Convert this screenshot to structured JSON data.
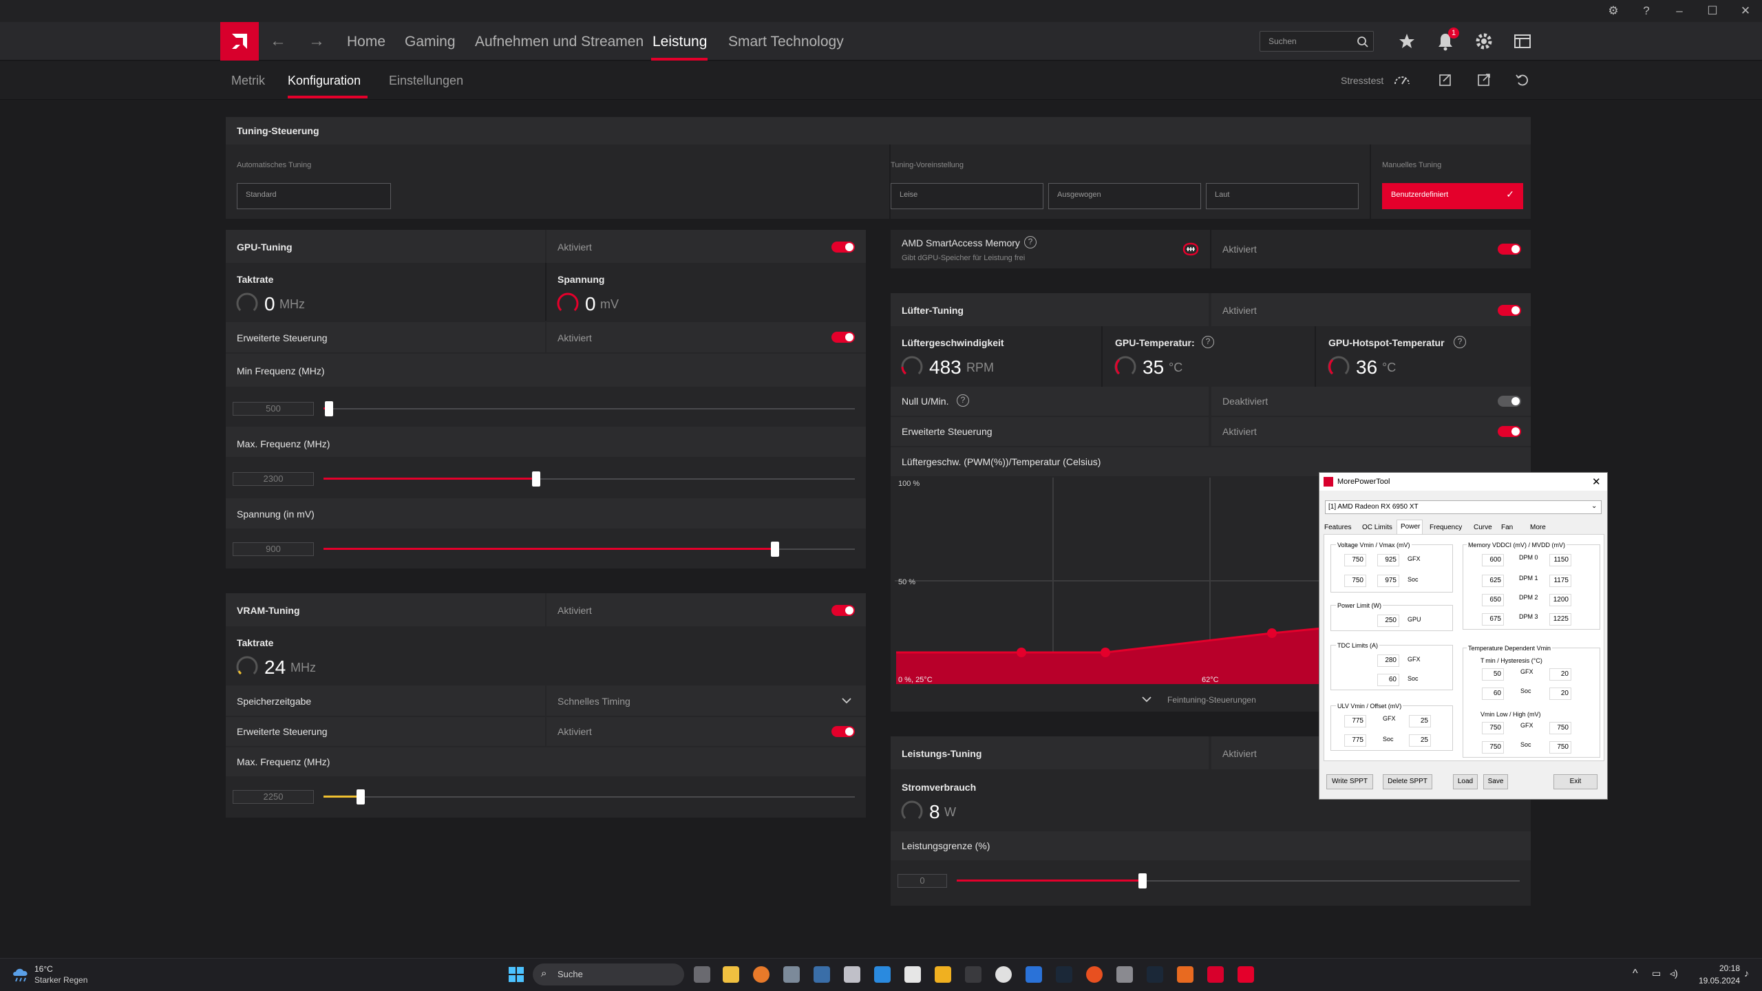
{
  "app": {
    "logo": "amd-logo-icon"
  },
  "nav": {
    "home": "Home",
    "gaming": "Gaming",
    "record": "Aufnehmen und Streamen",
    "performance": "Leistung",
    "smart": "Smart Technology",
    "search_placeholder": "Suchen",
    "notifications": "1"
  },
  "subnav": {
    "metric": "Metrik",
    "config": "Konfiguration",
    "settings": "Einstellungen",
    "stresstest": "Stresstest"
  },
  "tuning_control": {
    "title": "Tuning-Steuerung",
    "auto_label": "Automatisches Tuning",
    "auto_value": "Standard",
    "preset_label": "Tuning-Voreinstellung",
    "presets": [
      "Leise",
      "Ausgewogen",
      "Laut"
    ],
    "manual_label": "Manuelles Tuning",
    "manual_value": "Benutzerdefiniert"
  },
  "gpu": {
    "title": "GPU-Tuning",
    "status": "Aktiviert",
    "clock_label": "Taktrate",
    "clock_value": "0",
    "clock_unit": "MHz",
    "voltage_label": "Spannung",
    "voltage_value": "0",
    "voltage_unit": "mV",
    "advanced_label": "Erweiterte Steuerung",
    "advanced_status": "Aktiviert",
    "min_freq_label": "Min Frequenz (MHz)",
    "min_freq_value": "500",
    "max_freq_label": "Max. Frequenz (MHz)",
    "max_freq_value": "2300",
    "voltage_mv_label": "Spannung (in mV)",
    "voltage_mv_value": "900",
    "min_freq_level": 0.01,
    "max_freq_level": 0.4,
    "voltage_level": 0.85
  },
  "vram": {
    "title": "VRAM-Tuning",
    "status": "Aktiviert",
    "clock_label": "Taktrate",
    "clock_value": "24",
    "clock_unit": "MHz",
    "timing_label": "Speicherzeitgabe",
    "timing_value": "Schnelles Timing",
    "advanced_label": "Erweiterte Steuerung",
    "advanced_status": "Aktiviert",
    "max_freq_label": "Max. Frequenz (MHz)",
    "max_freq_value": "2250",
    "max_freq_level": 0.07
  },
  "sam": {
    "title": "AMD SmartAccess Memory",
    "subtitle": "Gibt dGPU-Speicher für Leistung frei",
    "status": "Aktiviert"
  },
  "fan": {
    "title": "Lüfter-Tuning",
    "status": "Aktiviert",
    "speed_label": "Lüftergeschwindigkeit",
    "speed_value": "483",
    "speed_unit": "RPM",
    "gpu_temp_label": "GPU-Temperatur:",
    "gpu_temp_value": "35",
    "gpu_temp_unit": "°C",
    "hotspot_label": "GPU-Hotspot-Temperatur",
    "hotspot_value": "36",
    "hotspot_unit": "°C",
    "zero_rpm_label": "Null U/Min.",
    "zero_rpm_status": "Deaktiviert",
    "advanced_label": "Erweiterte Steuerung",
    "advanced_status": "Aktiviert",
    "curve_title": "Lüftergeschw. (PWM(%))/Temperatur (Celsius)",
    "y100": "100 %",
    "y50": "50 %",
    "x0": "0 %, 25°C",
    "x62": "62°C",
    "fine_tune": "Feintuning-Steuerungen"
  },
  "power": {
    "title": "Leistungs-Tuning",
    "status": "Aktiviert",
    "consumption_label": "Stromverbrauch",
    "consumption_value": "8",
    "consumption_unit": "W",
    "limit_label": "Leistungsgrenze (%)",
    "limit_value": "0",
    "limit_level": 0.33
  },
  "mpt": {
    "title": "MorePowerTool",
    "device": "[1] AMD Radeon RX 6950 XT",
    "tabs": [
      "Features",
      "OC Limits",
      "Power",
      "Frequency",
      "Curve",
      "Fan",
      "More"
    ],
    "voltage_title": "Voltage Vmin / Vmax (mV)",
    "v_gfx": [
      "750",
      "925"
    ],
    "v_soc": [
      "750",
      "975"
    ],
    "gfx": "GFX",
    "soc": "Soc",
    "gpu": "GPU",
    "power_limit_title": "Power Limit (W)",
    "power_limit": "250",
    "tdc_title": "TDC Limits (A)",
    "tdc_gfx": "280",
    "tdc_soc": "60",
    "ulv_title": "ULV Vmin / Offset (mV)",
    "ulv_gfx": [
      "775",
      "25"
    ],
    "ulv_soc": [
      "775",
      "25"
    ],
    "mem_title": "Memory VDDCI (mV) / MVDD (mV)",
    "dpm": [
      "DPM 0",
      "DPM 1",
      "DPM 2",
      "DPM 3"
    ],
    "vddci": [
      "600",
      "625",
      "650",
      "675"
    ],
    "mvdd": [
      "1150",
      "1175",
      "1200",
      "1225"
    ],
    "tdv_title": "Temperature Dependent Vmin",
    "tmin_title": "T min / Hysteresis (°C)",
    "tmin_gfx": [
      "50",
      "20"
    ],
    "tmin_soc": [
      "60",
      "20"
    ],
    "vmin_title": "Vmin Low / High (mV)",
    "vmin_gfx": [
      "750",
      "750"
    ],
    "vmin_soc": [
      "750",
      "750"
    ],
    "buttons": [
      "Write SPPT",
      "Delete SPPT",
      "Load",
      "Save",
      "Exit"
    ]
  },
  "taskbar": {
    "weather_temp": "16°C",
    "weather_desc": "Starker Regen",
    "search": "Suche",
    "time": "20:18",
    "date": "19.05.2024"
  }
}
